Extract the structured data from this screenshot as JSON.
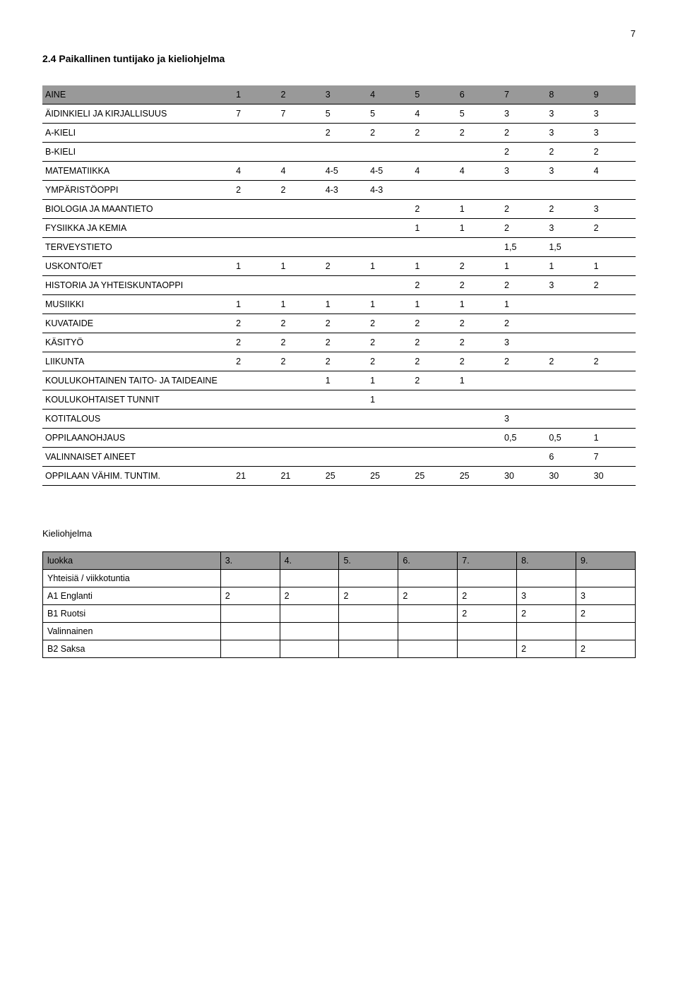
{
  "page_number": "7",
  "section_title": "2.4    Paikallinen tuntijako ja kieliohjelma",
  "main_table": {
    "header": [
      "AINE",
      "1",
      "2",
      "3",
      "4",
      "5",
      "6",
      "7",
      "8",
      "9"
    ],
    "rows": [
      [
        "ÄIDINKIELI JA KIRJALLISUUS",
        "7",
        "7",
        "5",
        "5",
        "4",
        "5",
        "3",
        "3",
        "3"
      ],
      [
        "A-KIELI",
        "",
        "",
        "2",
        "2",
        "2",
        "2",
        "2",
        "3",
        "3"
      ],
      [
        "B-KIELI",
        "",
        "",
        "",
        "",
        "",
        "",
        "2",
        "2",
        "2"
      ],
      [
        "MATEMATIIKKA",
        "4",
        "4",
        "4-5",
        "4-5",
        "4",
        "4",
        "3",
        "3",
        "4"
      ],
      [
        "YMPÄRISTÖOPPI",
        "2",
        "2",
        "4-3",
        "4-3",
        "",
        "",
        "",
        "",
        ""
      ],
      [
        "BIOLOGIA JA MAANTIETO",
        "",
        "",
        "",
        "",
        "2",
        "1",
        "2",
        "2",
        "3"
      ],
      [
        "FYSIIKKA JA KEMIA",
        "",
        "",
        "",
        "",
        "1",
        "1",
        "2",
        "3",
        "2"
      ],
      [
        "TERVEYSTIETO",
        "",
        "",
        "",
        "",
        "",
        "",
        "1,5",
        "1,5",
        ""
      ],
      [
        "USKONTO/ET",
        "1",
        "1",
        "2",
        "1",
        "1",
        "2",
        "1",
        "1",
        "1"
      ],
      [
        "HISTORIA JA YHTEISKUNTAOPPI",
        "",
        "",
        "",
        "",
        "2",
        "2",
        "2",
        "3",
        "2"
      ],
      [
        "MUSIIKKI",
        "1",
        "1",
        "1",
        "1",
        "1",
        "1",
        "1",
        "",
        ""
      ],
      [
        "KUVATAIDE",
        "2",
        "2",
        "2",
        "2",
        "2",
        "2",
        "2",
        "",
        ""
      ],
      [
        "KÄSITYÖ",
        "2",
        "2",
        "2",
        "2",
        "2",
        "2",
        "3",
        "",
        ""
      ],
      [
        "LIIKUNTA",
        "2",
        "2",
        "2",
        "2",
        "2",
        "2",
        "2",
        "2",
        "2"
      ],
      [
        "KOULUKOHTAINEN TAITO- JA TAIDEAINE",
        "",
        "",
        "1",
        "1",
        "2",
        "1",
        "",
        "",
        ""
      ],
      [
        "KOULUKOHTAISET TUNNIT",
        "",
        "",
        "",
        "1",
        "",
        "",
        "",
        "",
        ""
      ],
      [
        "KOTITALOUS",
        "",
        "",
        "",
        "",
        "",
        "",
        "3",
        "",
        ""
      ],
      [
        "OPPILAANOHJAUS",
        "",
        "",
        "",
        "",
        "",
        "",
        "0,5",
        "0,5",
        "1"
      ],
      [
        "VALINNAISET AINEET",
        "",
        "",
        "",
        "",
        "",
        "",
        "",
        "6",
        "7"
      ],
      [
        "OPPILAAN VÄHIM. TUNTIM.",
        "21",
        "21",
        "25",
        "25",
        "25",
        "25",
        "30",
        "30",
        "30"
      ]
    ]
  },
  "kieli_title": "Kieliohjelma",
  "lang_table": {
    "header": [
      "luokka",
      "3.",
      "4.",
      "5.",
      "6.",
      "7.",
      "8.",
      "9."
    ],
    "rows": [
      [
        "Yhteisiä / viikkotuntia",
        "",
        "",
        "",
        "",
        "",
        "",
        ""
      ],
      [
        "A1 Englanti",
        "2",
        "2",
        "2",
        "2",
        "2",
        "3",
        "3"
      ],
      [
        "B1 Ruotsi",
        "",
        "",
        "",
        "",
        "2",
        "2",
        "2"
      ],
      [
        "Valinnainen",
        "",
        "",
        "",
        "",
        "",
        "",
        ""
      ],
      [
        "B2 Saksa",
        "",
        "",
        "",
        "",
        "",
        "2",
        "2"
      ]
    ]
  }
}
